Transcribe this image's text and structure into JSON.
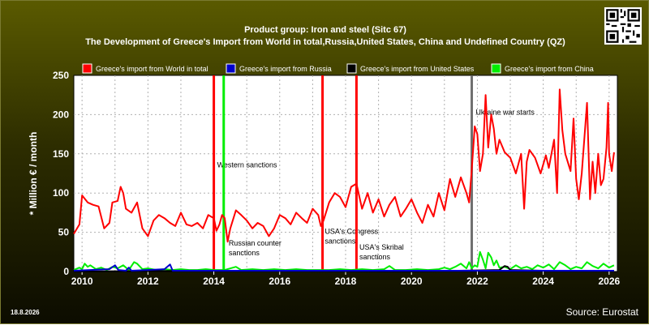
{
  "header": {
    "title_line1": "Product group: Iron and steel (Sitc 67)",
    "title_line2": "The Development of Greece's Import from World in total,Russia,United States, China and Undefined Country (QZ)"
  },
  "footer": {
    "date": "18.8.2026",
    "source": "Source: Eurostat"
  },
  "colors": {
    "world": "#ff0000",
    "russia": "#0000cc",
    "usa": "#000000",
    "china": "#00ee00",
    "plot_bg": "#ffffff",
    "grid": "#b0b0b0",
    "axis_text": "#ffffff"
  },
  "chart_data": {
    "type": "line",
    "title": "The Development of Greece's Import from World in total,Russia,United States, China and Undefined Country (QZ)",
    "subtitle": "Product group: Iron and steel (Sitc 67)",
    "xlabel": "",
    "ylabel": "* Million € / month",
    "xlim": [
      2009.75,
      2026.25
    ],
    "ylim": [
      0,
      250
    ],
    "x_ticks": [
      2010,
      2012,
      2014,
      2016,
      2018,
      2020,
      2022,
      2024,
      2026
    ],
    "y_ticks": [
      0,
      50,
      100,
      150,
      200,
      250
    ],
    "grid": true,
    "legend_position": "top",
    "series": [
      {
        "name": "Greece's import from World in total",
        "color": "#ff0000",
        "points": [
          [
            2009.75,
            48
          ],
          [
            2009.92,
            60
          ],
          [
            2010.0,
            97
          ],
          [
            2010.17,
            88
          ],
          [
            2010.33,
            85
          ],
          [
            2010.5,
            83
          ],
          [
            2010.67,
            55
          ],
          [
            2010.83,
            62
          ],
          [
            2010.92,
            88
          ],
          [
            2011.08,
            90
          ],
          [
            2011.17,
            108
          ],
          [
            2011.25,
            100
          ],
          [
            2011.33,
            80
          ],
          [
            2011.5,
            75
          ],
          [
            2011.67,
            88
          ],
          [
            2011.83,
            55
          ],
          [
            2012.0,
            45
          ],
          [
            2012.17,
            65
          ],
          [
            2012.33,
            72
          ],
          [
            2012.5,
            68
          ],
          [
            2012.67,
            62
          ],
          [
            2012.83,
            58
          ],
          [
            2013.0,
            75
          ],
          [
            2013.17,
            60
          ],
          [
            2013.33,
            58
          ],
          [
            2013.5,
            62
          ],
          [
            2013.67,
            55
          ],
          [
            2013.83,
            72
          ],
          [
            2014.0,
            68
          ],
          [
            2014.08,
            52
          ],
          [
            2014.17,
            60
          ],
          [
            2014.25,
            72
          ],
          [
            2014.33,
            68
          ],
          [
            2014.42,
            38
          ],
          [
            2014.5,
            55
          ],
          [
            2014.67,
            78
          ],
          [
            2014.83,
            72
          ],
          [
            2015.0,
            65
          ],
          [
            2015.17,
            55
          ],
          [
            2015.33,
            62
          ],
          [
            2015.5,
            58
          ],
          [
            2015.67,
            45
          ],
          [
            2015.83,
            55
          ],
          [
            2016.0,
            72
          ],
          [
            2016.17,
            68
          ],
          [
            2016.33,
            60
          ],
          [
            2016.5,
            75
          ],
          [
            2016.67,
            68
          ],
          [
            2016.83,
            62
          ],
          [
            2017.0,
            80
          ],
          [
            2017.17,
            72
          ],
          [
            2017.25,
            58
          ],
          [
            2017.33,
            65
          ],
          [
            2017.5,
            88
          ],
          [
            2017.67,
            100
          ],
          [
            2017.83,
            95
          ],
          [
            2018.0,
            82
          ],
          [
            2018.17,
            108
          ],
          [
            2018.33,
            112
          ],
          [
            2018.5,
            80
          ],
          [
            2018.67,
            100
          ],
          [
            2018.83,
            75
          ],
          [
            2019.0,
            92
          ],
          [
            2019.17,
            70
          ],
          [
            2019.33,
            85
          ],
          [
            2019.5,
            95
          ],
          [
            2019.67,
            70
          ],
          [
            2019.83,
            80
          ],
          [
            2020.0,
            92
          ],
          [
            2020.17,
            75
          ],
          [
            2020.33,
            62
          ],
          [
            2020.5,
            85
          ],
          [
            2020.67,
            70
          ],
          [
            2020.83,
            100
          ],
          [
            2021.0,
            78
          ],
          [
            2021.17,
            118
          ],
          [
            2021.33,
            95
          ],
          [
            2021.5,
            120
          ],
          [
            2021.67,
            100
          ],
          [
            2021.75,
            88
          ],
          [
            2021.83,
            130
          ],
          [
            2021.92,
            185
          ],
          [
            2022.0,
            175
          ],
          [
            2022.08,
            128
          ],
          [
            2022.17,
            150
          ],
          [
            2022.25,
            225
          ],
          [
            2022.33,
            158
          ],
          [
            2022.42,
            200
          ],
          [
            2022.5,
            182
          ],
          [
            2022.58,
            150
          ],
          [
            2022.67,
            168
          ],
          [
            2022.83,
            152
          ],
          [
            2023.0,
            145
          ],
          [
            2023.17,
            125
          ],
          [
            2023.33,
            150
          ],
          [
            2023.42,
            80
          ],
          [
            2023.5,
            140
          ],
          [
            2023.58,
            155
          ],
          [
            2023.75,
            145
          ],
          [
            2023.92,
            125
          ],
          [
            2024.08,
            148
          ],
          [
            2024.17,
            132
          ],
          [
            2024.33,
            168
          ],
          [
            2024.42,
            100
          ],
          [
            2024.5,
            232
          ],
          [
            2024.58,
            180
          ],
          [
            2024.67,
            150
          ],
          [
            2024.83,
            128
          ],
          [
            2024.92,
            195
          ],
          [
            2025.0,
            118
          ],
          [
            2025.08,
            92
          ],
          [
            2025.17,
            125
          ],
          [
            2025.33,
            215
          ],
          [
            2025.42,
            92
          ],
          [
            2025.5,
            140
          ],
          [
            2025.58,
            100
          ],
          [
            2025.67,
            150
          ],
          [
            2025.75,
            110
          ],
          [
            2025.83,
            118
          ],
          [
            2025.92,
            158
          ],
          [
            2025.97,
            215
          ],
          [
            2026.0,
            150
          ],
          [
            2026.08,
            128
          ],
          [
            2026.15,
            152
          ]
        ]
      },
      {
        "name": "Greece's import from Russia",
        "color": "#0000cc",
        "points": [
          [
            2009.75,
            1
          ],
          [
            2010.25,
            2
          ],
          [
            2010.83,
            3
          ],
          [
            2011.0,
            8
          ],
          [
            2011.1,
            2
          ],
          [
            2011.33,
            1
          ],
          [
            2011.42,
            5
          ],
          [
            2011.5,
            1
          ],
          [
            2012.0,
            2
          ],
          [
            2012.5,
            3
          ],
          [
            2012.67,
            9
          ],
          [
            2012.75,
            1
          ],
          [
            2013.5,
            1
          ],
          [
            2014.5,
            1
          ],
          [
            2016.0,
            1
          ],
          [
            2018.0,
            1
          ],
          [
            2019.5,
            1
          ],
          [
            2020.0,
            1
          ],
          [
            2024.0,
            1
          ],
          [
            2026.15,
            1
          ]
        ]
      },
      {
        "name": "Greece's import from United States",
        "color": "#000000",
        "points": [
          [
            2009.75,
            0
          ],
          [
            2014.0,
            1
          ],
          [
            2020.0,
            0
          ],
          [
            2022.67,
            2
          ],
          [
            2022.83,
            7
          ],
          [
            2022.92,
            6
          ],
          [
            2023.0,
            2
          ],
          [
            2024.0,
            1
          ],
          [
            2026.15,
            1
          ]
        ]
      },
      {
        "name": "Greece's import from China",
        "color": "#00ee00",
        "points": [
          [
            2009.75,
            2
          ],
          [
            2009.92,
            5
          ],
          [
            2010.0,
            3
          ],
          [
            2010.08,
            10
          ],
          [
            2010.17,
            6
          ],
          [
            2010.25,
            8
          ],
          [
            2010.42,
            3
          ],
          [
            2010.58,
            5
          ],
          [
            2010.75,
            2
          ],
          [
            2010.92,
            6
          ],
          [
            2011.08,
            4
          ],
          [
            2011.25,
            8
          ],
          [
            2011.42,
            2
          ],
          [
            2011.58,
            12
          ],
          [
            2011.67,
            10
          ],
          [
            2011.83,
            3
          ],
          [
            2012.0,
            4
          ],
          [
            2012.25,
            2
          ],
          [
            2012.5,
            3
          ],
          [
            2012.75,
            2
          ],
          [
            2013.0,
            3
          ],
          [
            2013.25,
            2
          ],
          [
            2013.5,
            2
          ],
          [
            2013.75,
            3
          ],
          [
            2014.0,
            2
          ],
          [
            2014.33,
            2
          ],
          [
            2014.67,
            6
          ],
          [
            2014.83,
            2
          ],
          [
            2015.17,
            3
          ],
          [
            2015.5,
            2
          ],
          [
            2015.83,
            3
          ],
          [
            2016.17,
            2
          ],
          [
            2016.5,
            3
          ],
          [
            2016.83,
            2
          ],
          [
            2017.17,
            2
          ],
          [
            2017.5,
            2
          ],
          [
            2017.83,
            3
          ],
          [
            2018.17,
            2
          ],
          [
            2018.5,
            3
          ],
          [
            2018.83,
            2
          ],
          [
            2019.17,
            3
          ],
          [
            2019.33,
            7
          ],
          [
            2019.5,
            2
          ],
          [
            2019.83,
            2
          ],
          [
            2020.17,
            3
          ],
          [
            2020.5,
            2
          ],
          [
            2020.83,
            3
          ],
          [
            2021.0,
            5
          ],
          [
            2021.17,
            3
          ],
          [
            2021.33,
            6
          ],
          [
            2021.5,
            10
          ],
          [
            2021.67,
            4
          ],
          [
            2021.75,
            12
          ],
          [
            2021.83,
            4
          ],
          [
            2021.92,
            8
          ],
          [
            2022.0,
            6
          ],
          [
            2022.08,
            25
          ],
          [
            2022.17,
            15
          ],
          [
            2022.25,
            4
          ],
          [
            2022.33,
            24
          ],
          [
            2022.42,
            18
          ],
          [
            2022.5,
            8
          ],
          [
            2022.58,
            14
          ],
          [
            2022.67,
            5
          ],
          [
            2022.83,
            6
          ],
          [
            2023.0,
            3
          ],
          [
            2023.17,
            8
          ],
          [
            2023.33,
            4
          ],
          [
            2023.5,
            6
          ],
          [
            2023.67,
            3
          ],
          [
            2023.83,
            8
          ],
          [
            2024.0,
            5
          ],
          [
            2024.17,
            9
          ],
          [
            2024.33,
            3
          ],
          [
            2024.5,
            12
          ],
          [
            2024.67,
            8
          ],
          [
            2024.83,
            3
          ],
          [
            2025.0,
            6
          ],
          [
            2025.17,
            4
          ],
          [
            2025.33,
            12
          ],
          [
            2025.5,
            7
          ],
          [
            2025.67,
            4
          ],
          [
            2025.83,
            10
          ],
          [
            2026.0,
            5
          ],
          [
            2026.15,
            8
          ]
        ]
      }
    ],
    "events": [
      {
        "label": "Western sanctions",
        "x": 2014.0,
        "color": "#ff0000"
      },
      {
        "label": "",
        "x": 2014.3,
        "color": "#00ee00"
      },
      {
        "label": "Russian counter sanctions",
        "x": 2014.3,
        "color": "#00ee00"
      },
      {
        "label": "USA's Congress sanctions",
        "x": 2017.3,
        "color": "#ff0000"
      },
      {
        "label": "USA's Skribal sanctions",
        "x": 2018.33,
        "color": "#ff0000"
      },
      {
        "label": "Ukraine war starts",
        "x": 2021.83,
        "color": "#707070"
      }
    ]
  }
}
